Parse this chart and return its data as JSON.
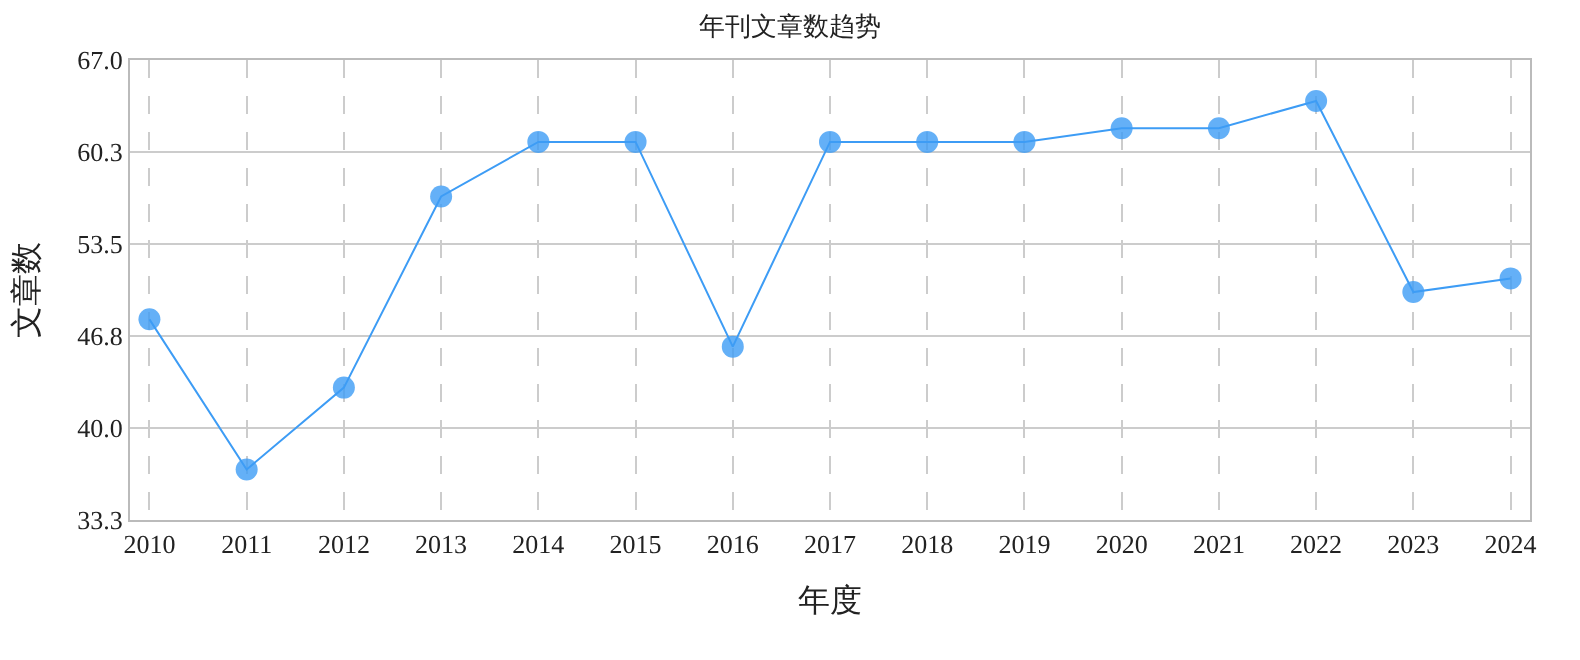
{
  "chart_data": {
    "type": "line",
    "title": "年刊文章数趋势",
    "xlabel": "年度",
    "ylabel": "文章数",
    "categories": [
      "2010",
      "2011",
      "2012",
      "2013",
      "2014",
      "2015",
      "2016",
      "2017",
      "2018",
      "2019",
      "2020",
      "2021",
      "2022",
      "2023",
      "2024"
    ],
    "series": [
      {
        "color": "#3d9cf5",
        "values": [
          48,
          37,
          43,
          57,
          61,
          61,
          46,
          61,
          61,
          61,
          62,
          62,
          64,
          50,
          51
        ]
      }
    ],
    "ylim": [
      33.3,
      67.0
    ],
    "yticks": [
      {
        "value": 33.3,
        "label": "33.3"
      },
      {
        "value": 40.04,
        "label": "40.0"
      },
      {
        "value": 46.78,
        "label": "46.8"
      },
      {
        "value": 53.52,
        "label": "53.5"
      },
      {
        "value": 60.26,
        "label": "60.3"
      },
      {
        "value": 67.0,
        "label": "67.0"
      }
    ],
    "grid": true,
    "marker": "circle",
    "line_style": "solid"
  }
}
